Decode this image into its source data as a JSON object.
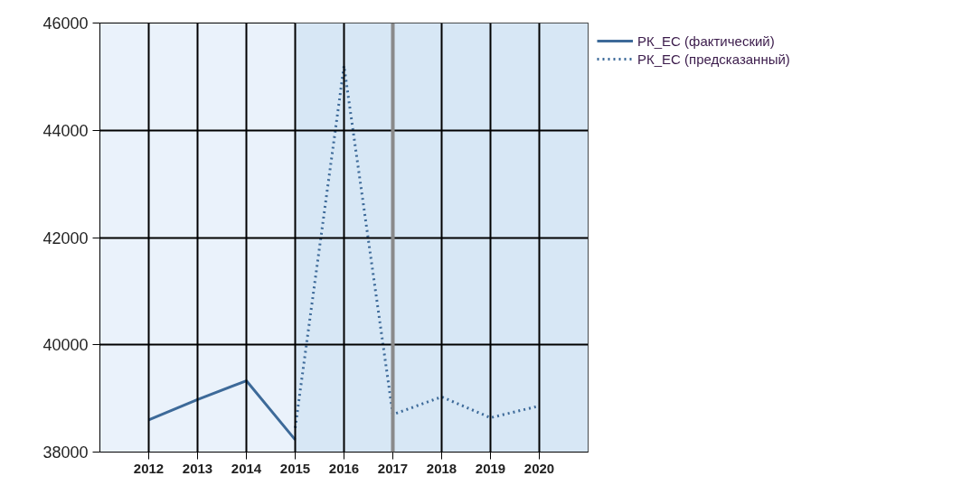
{
  "chart_data": {
    "type": "line",
    "x": [
      2012,
      2013,
      2014,
      2015,
      2016,
      2017,
      2018,
      2019,
      2020
    ],
    "series": [
      {
        "name": "РК_ЕС (фактический)",
        "color": "#3d6a99",
        "line_style": "solid",
        "values": [
          38600,
          38980,
          39330,
          38230,
          null,
          null,
          null,
          null,
          null
        ]
      },
      {
        "name": "РК_ЕС (предсказанный)",
        "color": "#3d6a99",
        "line_style": "dotted",
        "values": [
          null,
          null,
          null,
          38450,
          45200,
          38700,
          39030,
          38640,
          38860
        ]
      }
    ],
    "xlim": [
      2011,
      2021
    ],
    "xticks": [
      2012,
      2013,
      2014,
      2015,
      2016,
      2017,
      2018,
      2019,
      2020
    ],
    "ylim": [
      38000,
      46000
    ],
    "yticks": [
      38000,
      40000,
      42000,
      44000,
      46000
    ],
    "bands": [
      {
        "axis": "x",
        "from": 2015,
        "to": 2021,
        "color": "#d5e5f4"
      }
    ],
    "ref_lines": [
      {
        "axis": "x",
        "value": 2017,
        "color": "#8a8a8a"
      }
    ],
    "grid": true,
    "legend": "top right",
    "marker": "none"
  }
}
